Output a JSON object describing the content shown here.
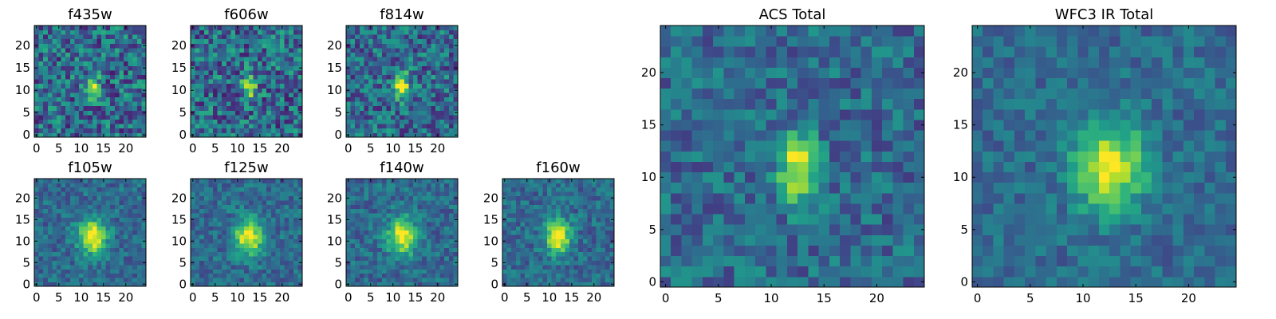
{
  "chart_data": [
    {
      "type": "heatmap",
      "title": "f435w",
      "xlim": [
        0,
        25
      ],
      "ylim": [
        0,
        25
      ],
      "xticks": [
        0,
        5,
        10,
        15,
        20
      ],
      "yticks": [
        0,
        5,
        10,
        15,
        20
      ],
      "source_center": [
        12.5,
        11.0
      ],
      "source_sigma": [
        1.0,
        1.8
      ],
      "noise": 0.55
    },
    {
      "type": "heatmap",
      "title": "f606w",
      "xlim": [
        0,
        25
      ],
      "ylim": [
        0,
        25
      ],
      "xticks": [
        0,
        5,
        10,
        15,
        20
      ],
      "yticks": [
        0,
        5,
        10,
        15,
        20
      ],
      "source_center": [
        12.5,
        11.0
      ],
      "source_sigma": [
        1.0,
        1.8
      ],
      "noise": 0.55
    },
    {
      "type": "heatmap",
      "title": "f814w",
      "xlim": [
        0,
        25
      ],
      "ylim": [
        0,
        25
      ],
      "xticks": [
        0,
        5,
        10,
        15,
        20
      ],
      "yticks": [
        0,
        5,
        10,
        15,
        20
      ],
      "source_center": [
        12.0,
        11.0
      ],
      "source_sigma": [
        1.1,
        2.0
      ],
      "noise": 0.5
    },
    {
      "type": "heatmap",
      "title": "f105w",
      "xlim": [
        0,
        25
      ],
      "ylim": [
        0,
        25
      ],
      "xticks": [
        0,
        5,
        10,
        15,
        20
      ],
      "yticks": [
        0,
        5,
        10,
        15,
        20
      ],
      "source_center": [
        12.5,
        11.0
      ],
      "source_sigma": [
        2.2,
        3.0
      ],
      "noise": 0.3
    },
    {
      "type": "heatmap",
      "title": "f125w",
      "xlim": [
        0,
        25
      ],
      "ylim": [
        0,
        25
      ],
      "xticks": [
        0,
        5,
        10,
        15,
        20
      ],
      "yticks": [
        0,
        5,
        10,
        15,
        20
      ],
      "source_center": [
        12.5,
        11.0
      ],
      "source_sigma": [
        2.2,
        3.0
      ],
      "noise": 0.3
    },
    {
      "type": "heatmap",
      "title": "f140w",
      "xlim": [
        0,
        25
      ],
      "ylim": [
        0,
        25
      ],
      "xticks": [
        0,
        5,
        10,
        15,
        20
      ],
      "yticks": [
        0,
        5,
        10,
        15,
        20
      ],
      "source_center": [
        12.0,
        11.0
      ],
      "source_sigma": [
        2.2,
        3.0
      ],
      "noise": 0.3
    },
    {
      "type": "heatmap",
      "title": "f160w",
      "xlim": [
        0,
        25
      ],
      "ylim": [
        0,
        25
      ],
      "xticks": [
        0,
        5,
        10,
        15,
        20
      ],
      "yticks": [
        0,
        5,
        10,
        15,
        20
      ],
      "source_center": [
        12.0,
        11.0
      ],
      "source_sigma": [
        2.0,
        2.8
      ],
      "noise": 0.3
    },
    {
      "type": "heatmap",
      "title": "ACS Total",
      "xlim": [
        0,
        25
      ],
      "ylim": [
        0,
        25
      ],
      "xticks": [
        0,
        5,
        10,
        15,
        20
      ],
      "yticks": [
        0,
        5,
        10,
        15,
        20
      ],
      "source_center": [
        12.5,
        11.0
      ],
      "source_sigma": [
        1.3,
        2.2
      ],
      "noise": 0.35
    },
    {
      "type": "heatmap",
      "title": "WFC3 IR Total",
      "xlim": [
        0,
        25
      ],
      "ylim": [
        0,
        25
      ],
      "xticks": [
        0,
        5,
        10,
        15,
        20
      ],
      "yticks": [
        0,
        5,
        10,
        15,
        20
      ],
      "source_center": [
        12.5,
        11.0
      ],
      "source_sigma": [
        2.3,
        3.0
      ],
      "noise": 0.25
    }
  ],
  "colors": {
    "colormap": "viridis",
    "frame": "#000000"
  }
}
